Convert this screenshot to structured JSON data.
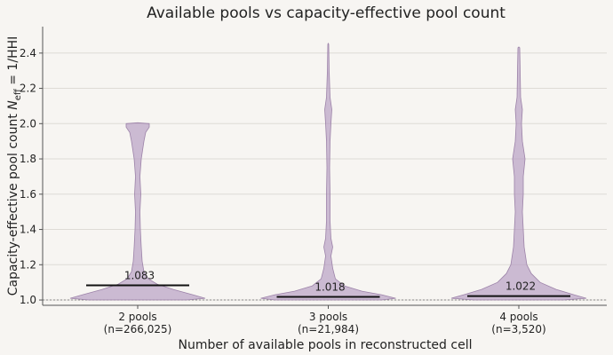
{
  "chart_data": {
    "type": "violin",
    "title": "Available pools vs capacity-effective pool count",
    "xlabel": "Number of available pools in reconstructed cell",
    "ylabel_prefix": "Capacity-effective pool count  ",
    "ylabel_symbol": "N",
    "ylabel_subscript": "eff",
    "ylabel_suffix": " = 1/HHI",
    "ylim": [
      0.97,
      2.55
    ],
    "yticks": [
      "1.0",
      "1.2",
      "1.4",
      "1.6",
      "1.8",
      "2.0",
      "2.2",
      "2.4"
    ],
    "grid": "horizontal",
    "reference_line": 1.0,
    "categories": [
      {
        "label": "2 pools",
        "n_label": "(n=266,025)",
        "median": 1.083,
        "median_label": "1.083"
      },
      {
        "label": "3 pools",
        "n_label": "(n=21,984)",
        "median": 1.018,
        "median_label": "1.018"
      },
      {
        "label": "4 pools",
        "n_label": "(n=3,520)",
        "median": 1.022,
        "median_label": "1.022"
      }
    ],
    "colors": {
      "violin": "#b49ac0",
      "median": "#111111",
      "background": "#f7f5f2"
    }
  }
}
